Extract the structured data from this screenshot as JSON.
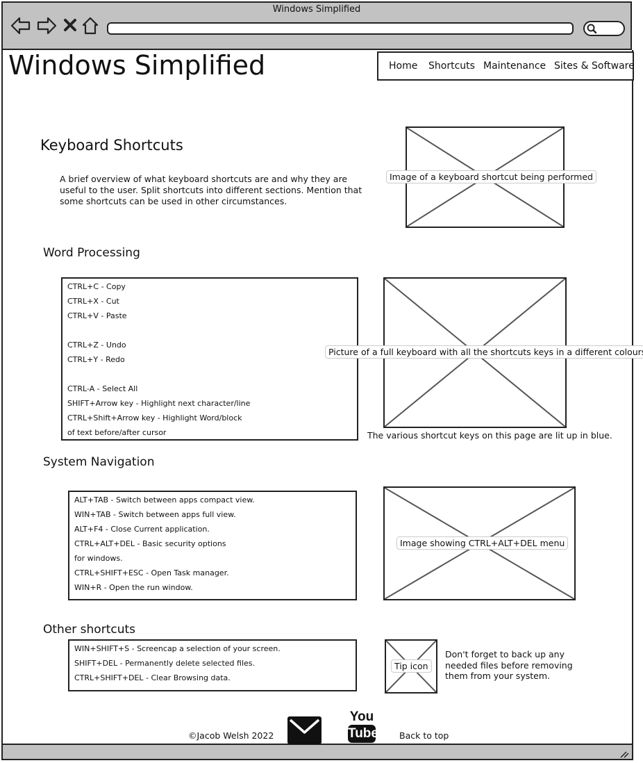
{
  "browser": {
    "window_title": "Windows Simplified",
    "icons": [
      "back-arrow-icon",
      "forward-arrow-icon",
      "close-icon",
      "home-icon",
      "search-icon"
    ]
  },
  "site": {
    "title": "Windows Simplified",
    "nav": [
      "Home",
      "Shortcuts",
      "Maintenance",
      "Sites & Software"
    ]
  },
  "intro": {
    "heading": "Keyboard Shortcuts",
    "text": "A brief overview of what keyboard shortcuts are and why they are useful to the user. Split shortcuts into different sections. Mention that some shortcuts can be used in other circumstances.",
    "image_label": "Image of a keyboard shortcut being performed"
  },
  "word_processing": {
    "heading": "Word Processing",
    "items": [
      "CTRL+C - Copy",
      "CTRL+X - Cut",
      "CTRL+V - Paste",
      "",
      "CTRL+Z - Undo",
      "CTRL+Y - Redo",
      "",
      "CTRL-A - Select All",
      "SHIFT+Arrow key - Highlight next character/line",
      "CTRL+Shift+Arrow key - Highlight Word/block",
      "of text before/after cursor"
    ],
    "image_label": "Picture of a full keyboard with all the shortcuts keys in a different colours",
    "caption": "The various shortcut keys on this page are lit up in blue."
  },
  "system_navigation": {
    "heading": "System Navigation",
    "items": [
      "ALT+TAB - Switch between apps compact view.",
      "WIN+TAB - Switch between apps full view.",
      "ALT+F4 - Close Current application.",
      "CTRL+ALT+DEL - Basic security options",
      "for windows.",
      "CTRL+SHIFT+ESC - Open Task manager.",
      "WIN+R - Open the run window."
    ],
    "image_label": "Image showing CTRL+ALT+DEL menu"
  },
  "other_shortcuts": {
    "heading": "Other shortcuts",
    "items": [
      "WIN+SHIFT+S - Screencap a selection of your screen.",
      "SHIFT+DEL - Permanently delete selected files.",
      "CTRL+SHIFT+DEL - Clear Browsing data."
    ],
    "tip_label": "Tip icon",
    "tip_text": "Don't forget to back up any needed files before removing them from your system."
  },
  "footer": {
    "copyright": "©Jacob Welsh 2022",
    "email_icon": "envelope-icon",
    "youtube_you": "You",
    "youtube_tube": "Tube",
    "back_to_top": "Back to top"
  }
}
